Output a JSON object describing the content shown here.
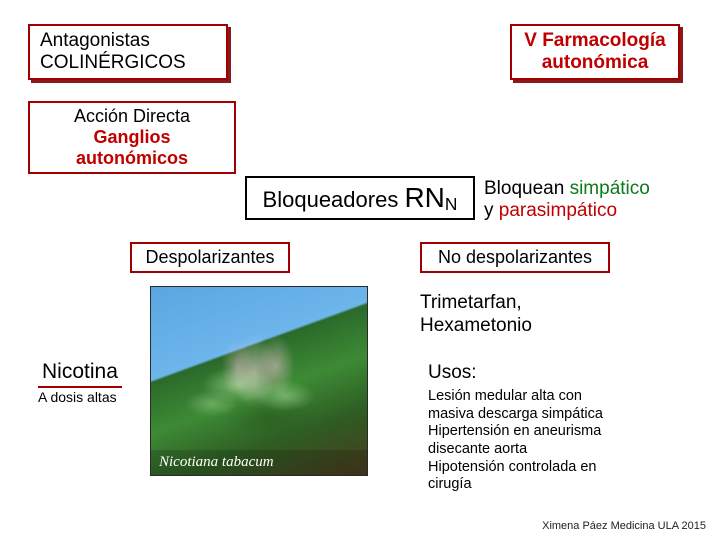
{
  "colors": {
    "border_red": "#a00000",
    "text_red": "#c00000",
    "text_green": "#0a7a1a",
    "shadow": "#8a1a1a",
    "black": "#000000"
  },
  "header": {
    "left_line1": "Antagonistas",
    "left_line2": "COLINÉRGICOS",
    "right_line1": "V Farmacología",
    "right_line2": "autonómica"
  },
  "subheader": {
    "line1": "Acción Directa",
    "line2": "Ganglios autonómicos"
  },
  "blockers": {
    "label_prefix": "Bloqueadores ",
    "label_rn": "RN",
    "label_sub": "N",
    "side_line1_pre": "Bloquean ",
    "side_line1_green": "simpático",
    "side_line2_pre": "y ",
    "side_line2_red": "parasimpático"
  },
  "branches": {
    "left": "Despolarizantes",
    "right": "No despolarizantes"
  },
  "right_details": {
    "drugs_line1": "Trimetarfan,",
    "drugs_line2": "Hexametonio",
    "uses_heading": "Usos:",
    "uses_lines": [
      "Lesión medular alta con",
      "masiva descarga simpática",
      "Hipertensión en aneurisma",
      "disecante aorta",
      "Hipotensión controlada en",
      "cirugía"
    ]
  },
  "left_details": {
    "title": "Nicotina",
    "subtitle": "A dosis altas",
    "photo_caption": "Nicotiana tabacum"
  },
  "credit": "Ximena Páez Medicina ULA 2015"
}
